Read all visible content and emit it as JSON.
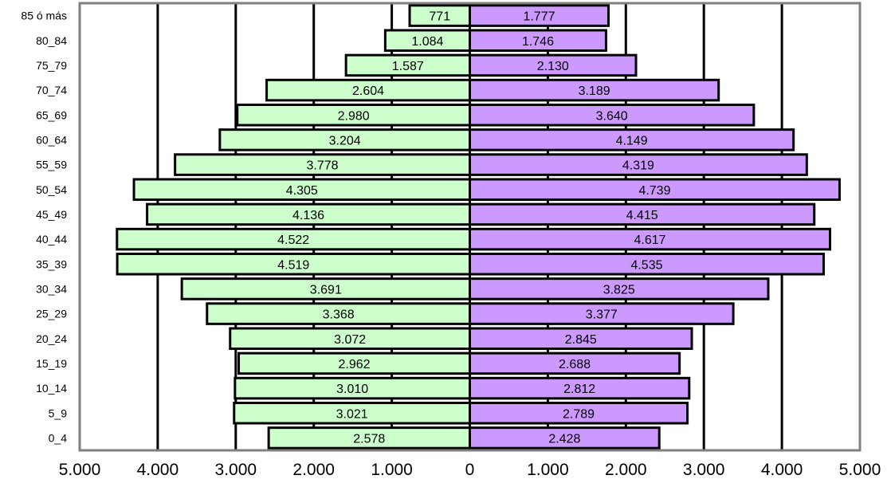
{
  "chart_data": {
    "type": "bar",
    "orientation": "horizontal-population-pyramid",
    "categories": [
      "0_4",
      "5_9",
      "10_14",
      "15_19",
      "20_24",
      "25_29",
      "30_34",
      "35_39",
      "40_44",
      "45_49",
      "50_54",
      "55_59",
      "60_64",
      "65_69",
      "70_74",
      "75_79",
      "80_84",
      "85 ó más"
    ],
    "series": [
      {
        "values": [
          2578,
          3021,
          3010,
          2962,
          3072,
          3368,
          3691,
          4519,
          4522,
          4136,
          4305,
          3778,
          3204,
          2980,
          2604,
          1587,
          1084,
          771
        ],
        "labels": [
          "2.578",
          "3.021",
          "3.010",
          "2.962",
          "3.072",
          "3.368",
          "3.691",
          "4.519",
          "4.522",
          "4.136",
          "4.305",
          "3.778",
          "3.204",
          "2.980",
          "2.604",
          "1.587",
          "1.084",
          "771"
        ],
        "color": "#ccffcc",
        "side": "left"
      },
      {
        "values": [
          2428,
          2789,
          2812,
          2688,
          2845,
          3377,
          3825,
          4535,
          4617,
          4415,
          4739,
          4319,
          4149,
          3640,
          3189,
          2130,
          1746,
          1777
        ],
        "labels": [
          "2.428",
          "2.789",
          "2.812",
          "2.688",
          "2.845",
          "3.377",
          "3.825",
          "4.535",
          "4.617",
          "4.415",
          "4.739",
          "4.319",
          "4.149",
          "3.640",
          "3.189",
          "2.130",
          "1.746",
          "1.777"
        ],
        "color": "#cc99ff",
        "side": "right"
      }
    ],
    "x_ticks": [
      "5.000",
      "4.000",
      "3.000",
      "2.000",
      "1.000",
      "0",
      "1.000",
      "2.000",
      "3.000",
      "4.000",
      "5.000"
    ],
    "xlim": [
      -5000,
      5000
    ],
    "title": "",
    "xlabel": "",
    "ylabel": "",
    "grid": "vertical"
  }
}
